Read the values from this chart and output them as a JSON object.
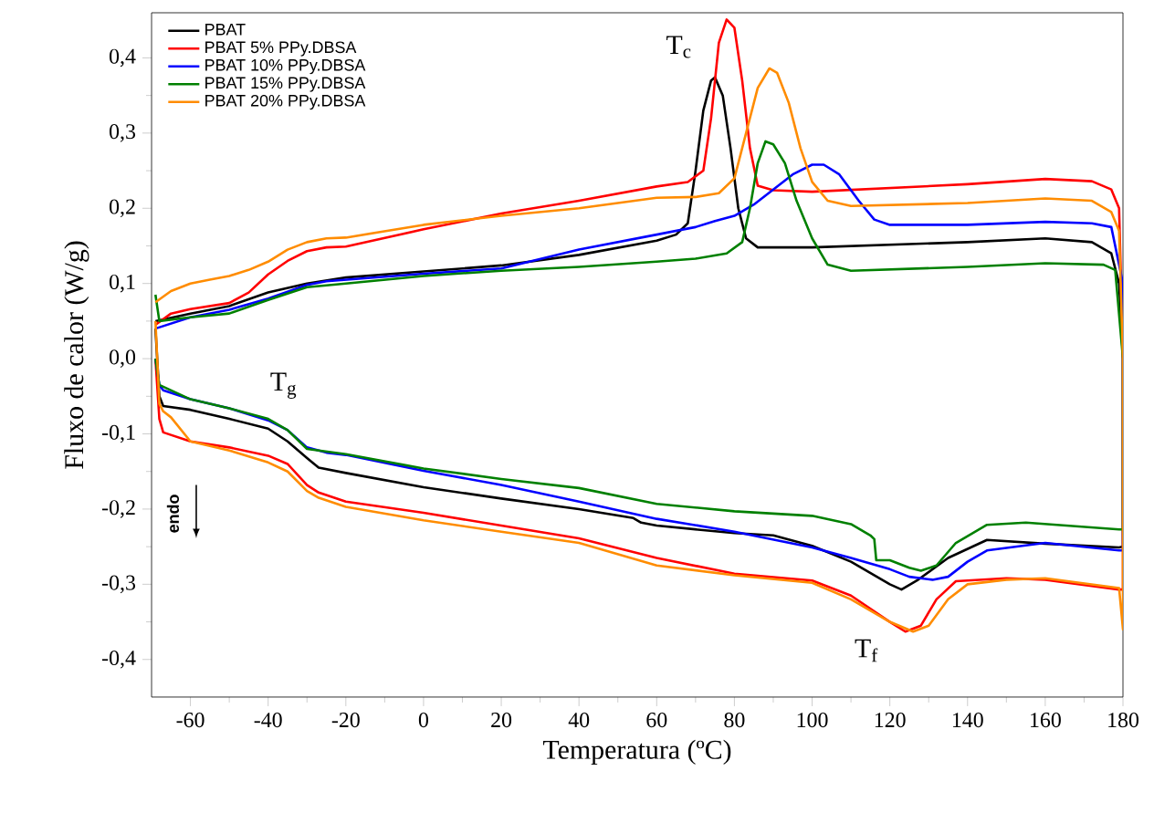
{
  "chart_data": {
    "type": "line",
    "xlabel": "Temperatura (ºC)",
    "ylabel": "Fluxo de calor (W/g)",
    "xlim": [
      -70,
      180
    ],
    "ylim": [
      -0.45,
      0.46
    ],
    "xticks": [
      -60,
      -40,
      -20,
      0,
      20,
      40,
      60,
      80,
      100,
      120,
      140,
      160,
      180
    ],
    "yticks": [
      {
        "value": -0.4,
        "label": "-0,4"
      },
      {
        "value": -0.3,
        "label": "-0,3"
      },
      {
        "value": -0.2,
        "label": "-0,2"
      },
      {
        "value": -0.1,
        "label": "-0,1"
      },
      {
        "value": 0,
        "label": "0,0"
      },
      {
        "value": 0.1,
        "label": "0,1"
      },
      {
        "value": 0.2,
        "label": "0,2"
      },
      {
        "value": 0.3,
        "label": "0,3"
      },
      {
        "value": 0.4,
        "label": "0,4"
      }
    ],
    "legend": "top left",
    "grid": false,
    "marker": "none",
    "line_style": "solid",
    "annotations": [
      "T$_{c}$",
      "T$_{g}$",
      "T$_{f}$",
      "endo"
    ],
    "series": [
      {
        "name": "PBAT",
        "color": "#000000",
        "x": [
          -69,
          -60,
          -50,
          -40,
          -30,
          -20,
          0,
          20,
          40,
          60,
          65,
          68,
          70,
          72,
          74,
          75,
          77,
          79,
          81,
          83,
          86,
          100,
          140,
          160,
          172,
          177,
          179,
          180,
          180,
          179,
          160,
          145,
          135,
          127,
          123,
          120,
          110,
          100,
          90,
          80,
          60,
          56,
          54,
          40,
          20,
          0,
          -20,
          -27,
          -30,
          -35,
          -40,
          -50,
          -60,
          -67,
          -68,
          -69
        ],
        "values": [
          0.05,
          0.06,
          0.07,
          0.088,
          0.1,
          0.108,
          0.116,
          0.124,
          0.138,
          0.157,
          0.165,
          0.18,
          0.25,
          0.33,
          0.37,
          0.374,
          0.35,
          0.28,
          0.2,
          0.16,
          0.148,
          0.148,
          0.155,
          0.16,
          0.155,
          0.14,
          0.1,
          0.0,
          -0.25,
          -0.251,
          -0.246,
          -0.241,
          -0.265,
          -0.295,
          -0.307,
          -0.3,
          -0.27,
          -0.249,
          -0.235,
          -0.232,
          -0.222,
          -0.218,
          -0.212,
          -0.2,
          -0.186,
          -0.171,
          -0.152,
          -0.145,
          -0.132,
          -0.11,
          -0.093,
          -0.08,
          -0.068,
          -0.063,
          -0.05,
          0.04
        ]
      },
      {
        "name": "PBAT 5% PPy.DBSA",
        "color": "#ff0000",
        "x": [
          -69,
          -65,
          -60,
          -55,
          -50,
          -45,
          -40,
          -35,
          -30,
          -25,
          -20,
          0,
          20,
          40,
          60,
          68,
          72,
          74,
          76,
          78,
          80,
          82,
          84,
          86,
          90,
          100,
          140,
          160,
          172,
          177,
          179,
          180,
          180,
          179,
          160,
          150,
          137,
          132,
          128,
          124,
          120,
          110,
          100,
          80,
          60,
          40,
          20,
          0,
          -20,
          -27,
          -30,
          -35,
          -40,
          -50,
          -60,
          -67,
          -68,
          -69
        ],
        "values": [
          0.045,
          0.06,
          0.066,
          0.07,
          0.074,
          0.088,
          0.112,
          0.13,
          0.143,
          0.148,
          0.149,
          0.172,
          0.193,
          0.21,
          0.229,
          0.235,
          0.25,
          0.32,
          0.42,
          0.451,
          0.44,
          0.37,
          0.28,
          0.23,
          0.224,
          0.222,
          0.232,
          0.239,
          0.236,
          0.225,
          0.2,
          0.0,
          -0.307,
          -0.307,
          -0.294,
          -0.292,
          -0.296,
          -0.32,
          -0.355,
          -0.363,
          -0.35,
          -0.315,
          -0.295,
          -0.286,
          -0.265,
          -0.239,
          -0.222,
          -0.205,
          -0.19,
          -0.178,
          -0.168,
          -0.14,
          -0.129,
          -0.118,
          -0.11,
          -0.098,
          -0.08,
          0.0
        ]
      },
      {
        "name": "PBAT 10% PPy.DBSA",
        "color": "#0000ff",
        "x": [
          -69,
          -60,
          -50,
          -40,
          -30,
          -25,
          0,
          20,
          40,
          60,
          70,
          75,
          80,
          85,
          90,
          95,
          100,
          103,
          107,
          112,
          116,
          120,
          140,
          160,
          172,
          177,
          180,
          180,
          179,
          160,
          145,
          140,
          135,
          131,
          125,
          120,
          110,
          100,
          80,
          60,
          40,
          20,
          0,
          -20,
          -25,
          -30,
          -35,
          -40,
          -50,
          -60,
          -67,
          -68,
          -69
        ],
        "values": [
          0.04,
          0.055,
          0.065,
          0.08,
          0.098,
          0.103,
          0.113,
          0.12,
          0.145,
          0.165,
          0.175,
          0.183,
          0.19,
          0.205,
          0.225,
          0.245,
          0.258,
          0.258,
          0.245,
          0.21,
          0.185,
          0.178,
          0.178,
          0.182,
          0.18,
          0.175,
          0.1,
          -0.255,
          -0.255,
          -0.245,
          -0.255,
          -0.27,
          -0.29,
          -0.294,
          -0.29,
          -0.28,
          -0.265,
          -0.251,
          -0.23,
          -0.213,
          -0.19,
          -0.168,
          -0.149,
          -0.128,
          -0.125,
          -0.118,
          -0.095,
          -0.082,
          -0.066,
          -0.054,
          -0.042,
          -0.035,
          0.0
        ]
      },
      {
        "name": "PBAT 15% PPy.DBSA",
        "color": "#008000",
        "x": [
          -69,
          -68,
          -60,
          -50,
          -40,
          -30,
          -20,
          0,
          20,
          40,
          60,
          70,
          78,
          82,
          84,
          86,
          88,
          90,
          93,
          96,
          100,
          104,
          110,
          140,
          160,
          175,
          178,
          180,
          180,
          179,
          155,
          145,
          137,
          132,
          128,
          125,
          120,
          116.5,
          116,
          115,
          110,
          100,
          80,
          60,
          40,
          20,
          0,
          -20,
          -30,
          -35,
          -40,
          -50,
          -60,
          -68,
          -69
        ],
        "values": [
          0.085,
          0.05,
          0.055,
          0.06,
          0.078,
          0.095,
          0.1,
          0.11,
          0.117,
          0.122,
          0.129,
          0.133,
          0.14,
          0.155,
          0.2,
          0.26,
          0.289,
          0.285,
          0.26,
          0.21,
          0.16,
          0.125,
          0.117,
          0.122,
          0.127,
          0.125,
          0.118,
          0.0,
          -0.227,
          -0.227,
          -0.218,
          -0.221,
          -0.245,
          -0.275,
          -0.282,
          -0.278,
          -0.268,
          -0.268,
          -0.24,
          -0.235,
          -0.22,
          -0.209,
          -0.203,
          -0.193,
          -0.172,
          -0.16,
          -0.146,
          -0.127,
          -0.12,
          -0.095,
          -0.08,
          -0.066,
          -0.054,
          -0.035,
          0.0
        ]
      },
      {
        "name": "PBAT 20% PPy.DBSA",
        "color": "#ff8c00",
        "x": [
          -69,
          -65,
          -60,
          -55,
          -50,
          -45,
          -40,
          -35,
          -30,
          -25,
          -20,
          0,
          20,
          40,
          60,
          70,
          76,
          80,
          83,
          86,
          89,
          91,
          94,
          97,
          100,
          104,
          110,
          140,
          160,
          172,
          177,
          179,
          180,
          180,
          179,
          160,
          150,
          140,
          135,
          130,
          126,
          120,
          110,
          100,
          80,
          60,
          40,
          20,
          0,
          -20,
          -27,
          -30,
          -35,
          -40,
          -50,
          -60,
          -65,
          -67,
          -68,
          -69
        ],
        "values": [
          0.075,
          0.09,
          0.1,
          0.105,
          0.11,
          0.118,
          0.129,
          0.145,
          0.155,
          0.16,
          0.161,
          0.178,
          0.19,
          0.2,
          0.214,
          0.215,
          0.22,
          0.24,
          0.3,
          0.36,
          0.386,
          0.38,
          0.34,
          0.28,
          0.235,
          0.21,
          0.203,
          0.207,
          0.213,
          0.21,
          0.195,
          0.17,
          0.0,
          -0.36,
          -0.305,
          -0.292,
          -0.294,
          -0.3,
          -0.32,
          -0.355,
          -0.363,
          -0.35,
          -0.32,
          -0.298,
          -0.288,
          -0.275,
          -0.245,
          -0.23,
          -0.215,
          -0.197,
          -0.185,
          -0.176,
          -0.15,
          -0.138,
          -0.122,
          -0.11,
          -0.078,
          -0.07,
          -0.06,
          0.05
        ]
      }
    ]
  }
}
